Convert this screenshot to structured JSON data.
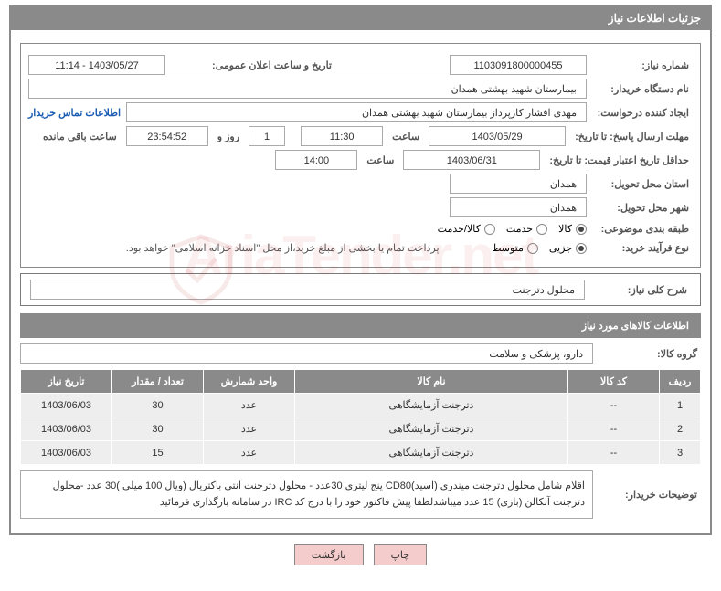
{
  "panel": {
    "title": "جزئیات اطلاعات نیاز"
  },
  "fields": {
    "need_number_label": "شماره نیاز:",
    "need_number": "1103091800000455",
    "announce_datetime_label": "تاریخ و ساعت اعلان عمومی:",
    "announce_datetime": "1403/05/27 - 11:14",
    "buyer_org_label": "نام دستگاه خریدار:",
    "buyer_org": "بیمارستان شهید بهشتی همدان",
    "requester_label": "ایجاد کننده درخواست:",
    "requester": "مهدی افشار کارپرداز بیمارستان شهید بهشتی همدان",
    "contact_link": "اطلاعات تماس خریدار",
    "deadline_label": "مهلت ارسال پاسخ: تا تاریخ:",
    "deadline_date": "1403/05/29",
    "time_word": "ساعت",
    "deadline_time": "11:30",
    "countdown_days": "1",
    "day_and_word": "روز و",
    "countdown_time": "23:54:52",
    "remaining_word": "ساعت باقی مانده",
    "validity_label": "حداقل تاریخ اعتبار قیمت: تا تاریخ:",
    "validity_date": "1403/06/31",
    "validity_time": "14:00",
    "province_label": "استان محل تحویل:",
    "province": "همدان",
    "city_label": "شهر محل تحویل:",
    "city": "همدان",
    "category_label": "طبقه بندی موضوعی:",
    "category_options": {
      "goods": "کالا",
      "service": "خدمت",
      "goods_service": "کالا/خدمت"
    },
    "process_label": "نوع فرآیند خرید:",
    "process_options": {
      "small": "جزیی",
      "medium": "متوسط"
    },
    "payment_note": "پرداخت تمام یا بخشی از مبلغ خرید،از محل \"اسناد خزانه اسلامی\" خواهد بود."
  },
  "general_desc": {
    "label": "شرح کلی نیاز:",
    "value": "محلول دترجنت"
  },
  "goods_section": {
    "title": "اطلاعات کالاهای مورد نیاز",
    "group_label": "گروه کالا:",
    "group_value": "دارو، پزشکی و سلامت"
  },
  "table": {
    "columns": {
      "row": "ردیف",
      "code": "کد کالا",
      "name": "نام کالا",
      "unit": "واحد شمارش",
      "qty": "تعداد / مقدار",
      "need_date": "تاریخ نیاز"
    },
    "rows": [
      {
        "row": "1",
        "code": "--",
        "name": "دترجنت آزمایشگاهی",
        "unit": "عدد",
        "qty": "30",
        "need_date": "1403/06/03"
      },
      {
        "row": "2",
        "code": "--",
        "name": "دترجنت آزمایشگاهی",
        "unit": "عدد",
        "qty": "30",
        "need_date": "1403/06/03"
      },
      {
        "row": "3",
        "code": "--",
        "name": "دترجنت آزمایشگاهی",
        "unit": "عدد",
        "qty": "15",
        "need_date": "1403/06/03"
      }
    ]
  },
  "buyer_desc": {
    "label": "توضیحات خریدار:",
    "text": "اقلام شامل محلول دترجنت میندری (اسید)CD80 پنج لیتری 30عدد - محلول دترجنت آنتی باکتریال (ویال 100 میلی )30 عدد -محلول دترجنت آلکالن (بازی) 15 عدد میباشدلطفا پیش فاکتور خود را با درج کد IRC در سامانه بارگذاری فرمائید"
  },
  "buttons": {
    "print": "چاپ",
    "back": "بازگشت"
  },
  "watermark": "AriaTender.net",
  "styles": {
    "panel_bg": "#8a8a8a",
    "header_text": "#ffffff",
    "label_color": "#555555",
    "link_color": "#1a5db3",
    "btn_bg": "#f4cccc",
    "row_bg": "#eeeeee",
    "border": "#aaaaaa",
    "watermark_color": "rgba(200,50,50,0.08)"
  }
}
